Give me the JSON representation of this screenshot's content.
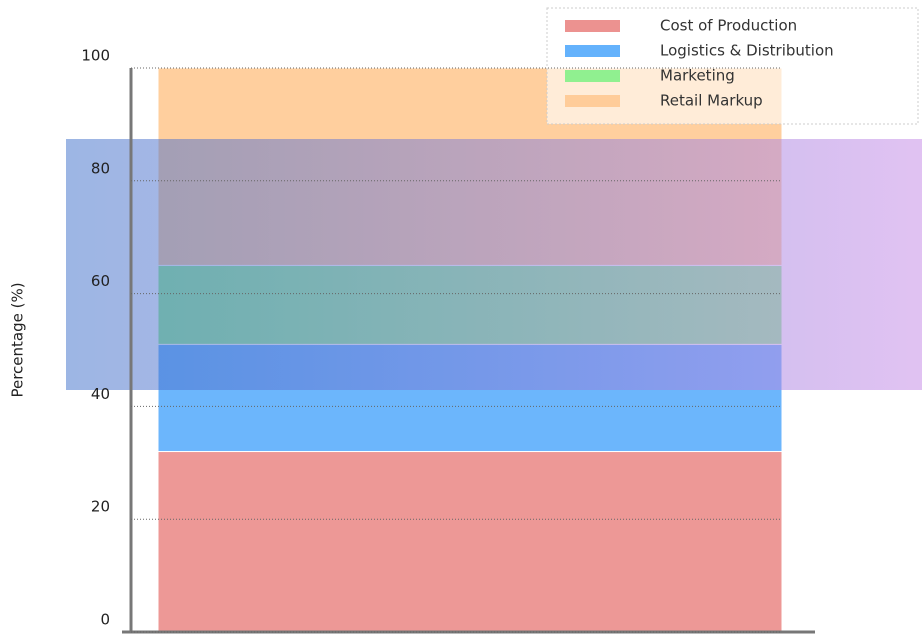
{
  "chart_data": {
    "type": "stacked_bar",
    "categories": [
      null
    ],
    "series": [
      {
        "name": "Cost of Production",
        "color": "#ec9290",
        "values": [
          32
        ]
      },
      {
        "name": "Logistics & Distribution",
        "color": "#64b2fc",
        "values": [
          19
        ]
      },
      {
        "name": "Marketing",
        "color": "#90f090",
        "values": [
          14
        ]
      },
      {
        "name": "Retail Markup",
        "color": "#ffcc99",
        "values": [
          35
        ]
      }
    ],
    "y_label": "Percentage (%)",
    "ylim": [
      0,
      100
    ],
    "yticks": [
      0,
      20,
      40,
      60,
      80,
      100
    ],
    "grid": true,
    "legend": "upper right"
  }
}
